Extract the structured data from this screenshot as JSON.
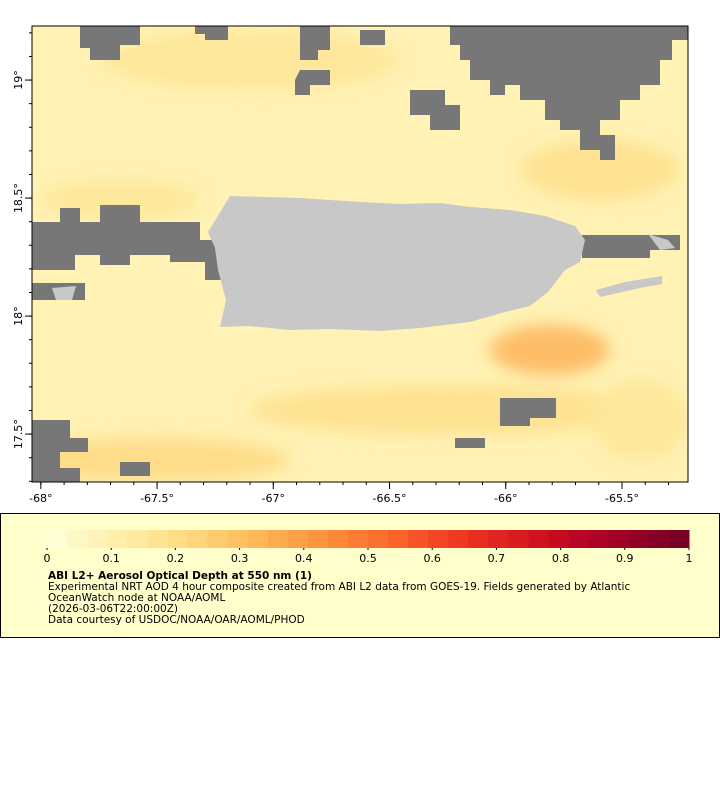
{
  "map": {
    "lon_range": [
      -68.038,
      -65.216
    ],
    "lat_range": [
      17.297,
      19.229
    ],
    "lon_ticks": [
      {
        "value": -68,
        "label": "-68°"
      },
      {
        "value": -67.5,
        "label": "-67.5°"
      },
      {
        "value": -67,
        "label": "-67°"
      },
      {
        "value": -66.5,
        "label": "-66.5°"
      },
      {
        "value": -66,
        "label": "-66°"
      },
      {
        "value": -65.5,
        "label": "-65.5°"
      }
    ],
    "lat_ticks": [
      {
        "value": 17.5,
        "label": "17.5°"
      },
      {
        "value": 18,
        "label": "18°"
      },
      {
        "value": 18.5,
        "label": "18.5°"
      },
      {
        "value": 19,
        "label": "19°"
      }
    ],
    "lon_minor_ticks": [
      -68,
      -67.9,
      -67.8,
      -67.7,
      -67.6,
      -67.5,
      -67.4,
      -67.3,
      -67.2,
      -67.1,
      -67,
      -66.9,
      -66.8,
      -66.7,
      -66.6,
      -66.5,
      -66.4,
      -66.3,
      -66.2,
      -66.1,
      -66,
      -65.9,
      -65.8,
      -65.7,
      -65.6,
      -65.5,
      -65.4,
      -65.3
    ],
    "lat_minor_ticks": [
      17.3,
      17.4,
      17.5,
      17.6,
      17.7,
      17.8,
      17.9,
      18,
      18.1,
      18.2,
      18.3,
      18.4,
      18.5,
      18.6,
      18.7,
      18.8,
      18.9,
      19,
      19.1,
      19.2
    ],
    "colorbar": {
      "range": [
        0,
        1
      ],
      "ticks": [
        0,
        0.1,
        0.2,
        0.3,
        0.4,
        0.5,
        0.6,
        0.7,
        0.8,
        0.9,
        1
      ],
      "colors": [
        "#fffcd6",
        "#fff8c6",
        "#fff3b8",
        "#ffefab",
        "#feea9e",
        "#fee492",
        "#fedd86",
        "#fed57a",
        "#fecc6e",
        "#fec262",
        "#feb757",
        "#fdab4e",
        "#fd9f46",
        "#fd943f",
        "#fc8838",
        "#fc7c33",
        "#fb6f2f",
        "#f9622b",
        "#f65428",
        "#f24624",
        "#ee3a22",
        "#e82e20",
        "#e1241f",
        "#da1b1f",
        "#d0121f",
        "#c60a22",
        "#bb0525",
        "#ae0226",
        "#a00126",
        "#920026",
        "#850026",
        "#780025"
      ]
    },
    "title": "ABI L2+ Aerosol Optical Depth at 550 nm (1)",
    "description": "Experimental NRT AOD 4 hour composite created from ABI L2 data from GOES-19. Fields generated by Atlantic OceanWatch node at NOAA/AOML",
    "date": "(2026-03-06T22:00:00Z)",
    "credit": "Data courtesy of USDOC/NOAA/OAR/AOML/PHOD"
  }
}
